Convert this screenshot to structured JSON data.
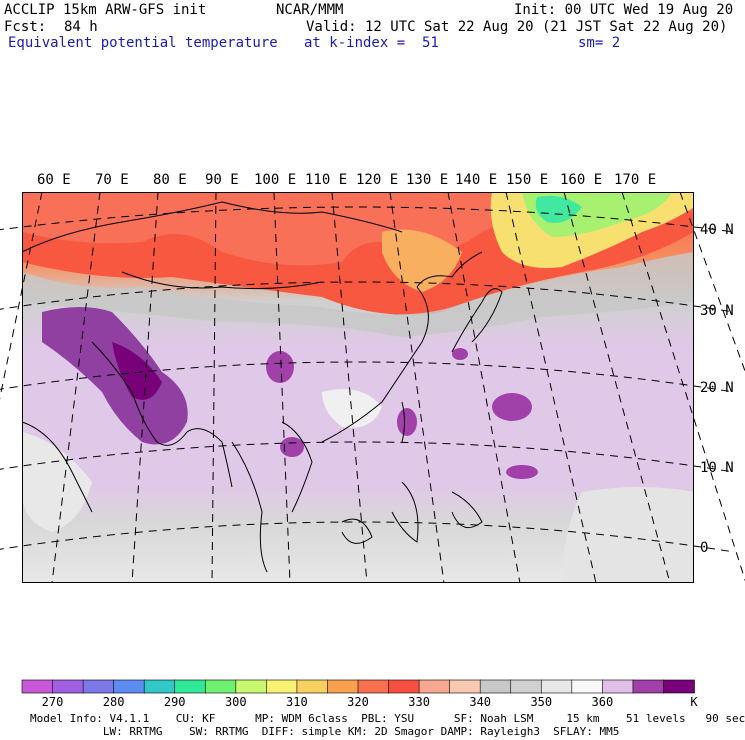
{
  "header": {
    "line1_left": "ACCLIP 15km ARW-GFS init",
    "line1_center": "NCAR/MMM",
    "line1_right": "Init: 00 UTC Wed 19 Aug 20",
    "fcst_label": "Fcst:",
    "fcst_value": "84 h",
    "valid": "Valid: 12 UTC Sat 22 Aug 20 (21 JST Sat 22 Aug 20)",
    "field": "Equivalent potential temperature",
    "level": "at k-index =  51",
    "smoothing": "sm= 2"
  },
  "map": {
    "lon_labels": [
      "60 E",
      "70 E",
      "80 E",
      "90 E",
      "100 E",
      "110 E",
      "120 E",
      "130 E",
      "140 E",
      "150 E",
      "160 E",
      "170 E"
    ],
    "lat_labels": [
      "40 N",
      "30 N",
      "20 N",
      "10 N",
      "0"
    ]
  },
  "colorbar": {
    "colors": [
      "#c858d8",
      "#a060e0",
      "#7c78e8",
      "#5c8cf0",
      "#30c8c8",
      "#30e898",
      "#70f070",
      "#c8f870",
      "#f8f070",
      "#f8d060",
      "#f8a050",
      "#f87050",
      "#f85040",
      "#f8a890",
      "#f8c8b0",
      "#c8c8c8",
      "#d0d0d0",
      "#e8e8e8",
      "#f8f8f8",
      "#e0c0e8",
      "#a040a8",
      "#780078"
    ],
    "labels": [
      "270",
      "280",
      "290",
      "300",
      "310",
      "320",
      "330",
      "340",
      "350",
      "360"
    ],
    "unit": "K"
  },
  "footer": {
    "line1": "Model Info: V4.1.1    CU: KF      MP: WDM 6class  PBL: YSU      SF: Noah LSM     15 km    51 levels   90 sec",
    "line2": "           LW: RRTMG    SW: RRTMG  DIFF: simple KM: 2D Smagor DAMP: Rayleigh3  SFLAY: MM5"
  }
}
